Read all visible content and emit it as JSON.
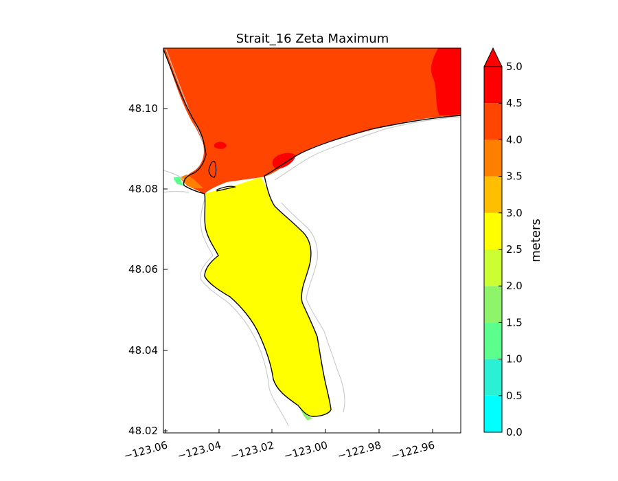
{
  "title": "Strait_16 Zeta Maximum",
  "lon_ticks": [
    "−123.06",
    "−123.04",
    "−123.02",
    "−123.00",
    "−122.98",
    "−122.96"
  ],
  "lat_ticks": [
    "48.10",
    "48.08",
    "48.06",
    "48.04",
    "48.02"
  ],
  "colorbar": {
    "label": "meters",
    "ticks": [
      "0.0",
      "0.5",
      "1.0",
      "1.5",
      "2.0",
      "2.5",
      "3.0",
      "3.5",
      "4.0",
      "4.5",
      "5.0"
    ],
    "colors": [
      "#00ffff",
      "#2bf0d4",
      "#5cff8e",
      "#8ef56b",
      "#ccff33",
      "#ffff00",
      "#ffbf00",
      "#ff7f00",
      "#ff4500",
      "#ff0000"
    ],
    "extend": "max"
  },
  "chart_data": {
    "type": "filled-contour-map",
    "title": "Strait_16 Zeta Maximum",
    "xlabel": "",
    "ylabel": "",
    "x_range": [
      -123.0625,
      -122.9525
    ],
    "y_range": [
      48.0195,
      48.115
    ],
    "levels": [
      0.0,
      0.5,
      1.0,
      1.5,
      2.0,
      2.5,
      3.0,
      3.5,
      4.0,
      4.5,
      5.0
    ],
    "colorbar_label": "meters",
    "regions": [
      {
        "area": "northern strait",
        "zeta_range": [
          4.0,
          4.5
        ]
      },
      {
        "area": "northeast corner",
        "zeta_range": [
          4.5,
          5.0
        ]
      },
      {
        "area": "southern inlet",
        "zeta_range": [
          2.5,
          3.0
        ]
      }
    ]
  }
}
